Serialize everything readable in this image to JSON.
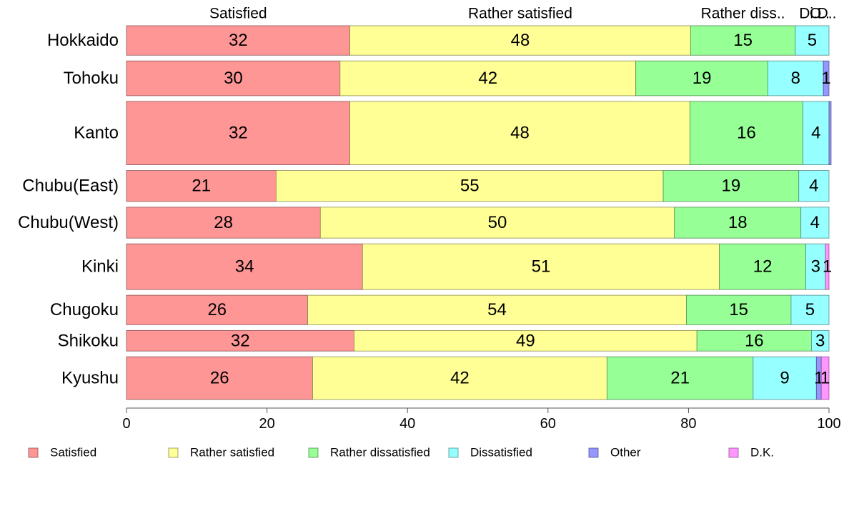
{
  "chart_data": {
    "type": "bar",
    "orientation": "horizontal",
    "stacked": true,
    "variable_width": true,
    "categories": [
      "Hokkaido",
      "Tohoku",
      "Kanto",
      "Chubu(East)",
      "Chubu(West)",
      "Kinki",
      "Chugoku",
      "Shikoku",
      "Kyushu"
    ],
    "category_weights": [
      1.0,
      1.18,
      2.15,
      1.05,
      1.05,
      1.55,
      1.0,
      0.7,
      1.45
    ],
    "series": [
      {
        "name": "Satisfied",
        "color": "#ff9696",
        "values": [
          31.8,
          30.4,
          31.8,
          21.3,
          27.6,
          33.6,
          25.8,
          32.4,
          26.5
        ]
      },
      {
        "name": "Rather satisfied",
        "color": "#ffff96",
        "values": [
          48.5,
          42.1,
          48.4,
          55.1,
          50.4,
          50.8,
          53.9,
          48.8,
          41.9
        ]
      },
      {
        "name": "Rather dissatisfied",
        "color": "#96ff96",
        "values": [
          14.9,
          18.8,
          16.1,
          19.3,
          18.0,
          12.3,
          14.9,
          16.3,
          20.8
        ]
      },
      {
        "name": "Dissatisfied",
        "color": "#96ffff",
        "values": [
          4.8,
          7.9,
          3.7,
          4.3,
          4.0,
          2.8,
          5.4,
          2.5,
          9.0
        ]
      },
      {
        "name": "Other",
        "color": "#9696ff",
        "values": [
          0.0,
          0.8,
          0.3,
          0.0,
          0.0,
          0.0,
          0.0,
          0.0,
          0.7
        ]
      },
      {
        "name": "D.K.",
        "color": "#ff96ff",
        "values": [
          0.0,
          0.0,
          0.0,
          0.0,
          0.0,
          0.5,
          0.0,
          0.0,
          1.1
        ]
      }
    ],
    "data_labels": [
      [
        "32",
        "48",
        "15",
        "5",
        "",
        ""
      ],
      [
        "30",
        "42",
        "19",
        "8",
        "1",
        ""
      ],
      [
        "32",
        "48",
        "16",
        "4",
        "",
        ""
      ],
      [
        "21",
        "55",
        "19",
        "4",
        "",
        ""
      ],
      [
        "28",
        "50",
        "18",
        "4",
        "",
        ""
      ],
      [
        "34",
        "51",
        "12",
        "3",
        "",
        "1"
      ],
      [
        "26",
        "54",
        "15",
        "5",
        "",
        ""
      ],
      [
        "32",
        "49",
        "16",
        "3",
        "",
        ""
      ],
      [
        "26",
        "42",
        "21",
        "9",
        "1",
        "1"
      ]
    ],
    "top_labels": [
      "Satisfied",
      "Rather satisfied",
      "Rather diss..",
      "Di..",
      "O..",
      "D.."
    ],
    "xlim": [
      0,
      100
    ],
    "xticks": [
      0,
      20,
      40,
      60,
      80,
      100
    ],
    "grid": false,
    "legend_position": "bottom",
    "title": "",
    "xlabel": "",
    "ylabel": ""
  }
}
